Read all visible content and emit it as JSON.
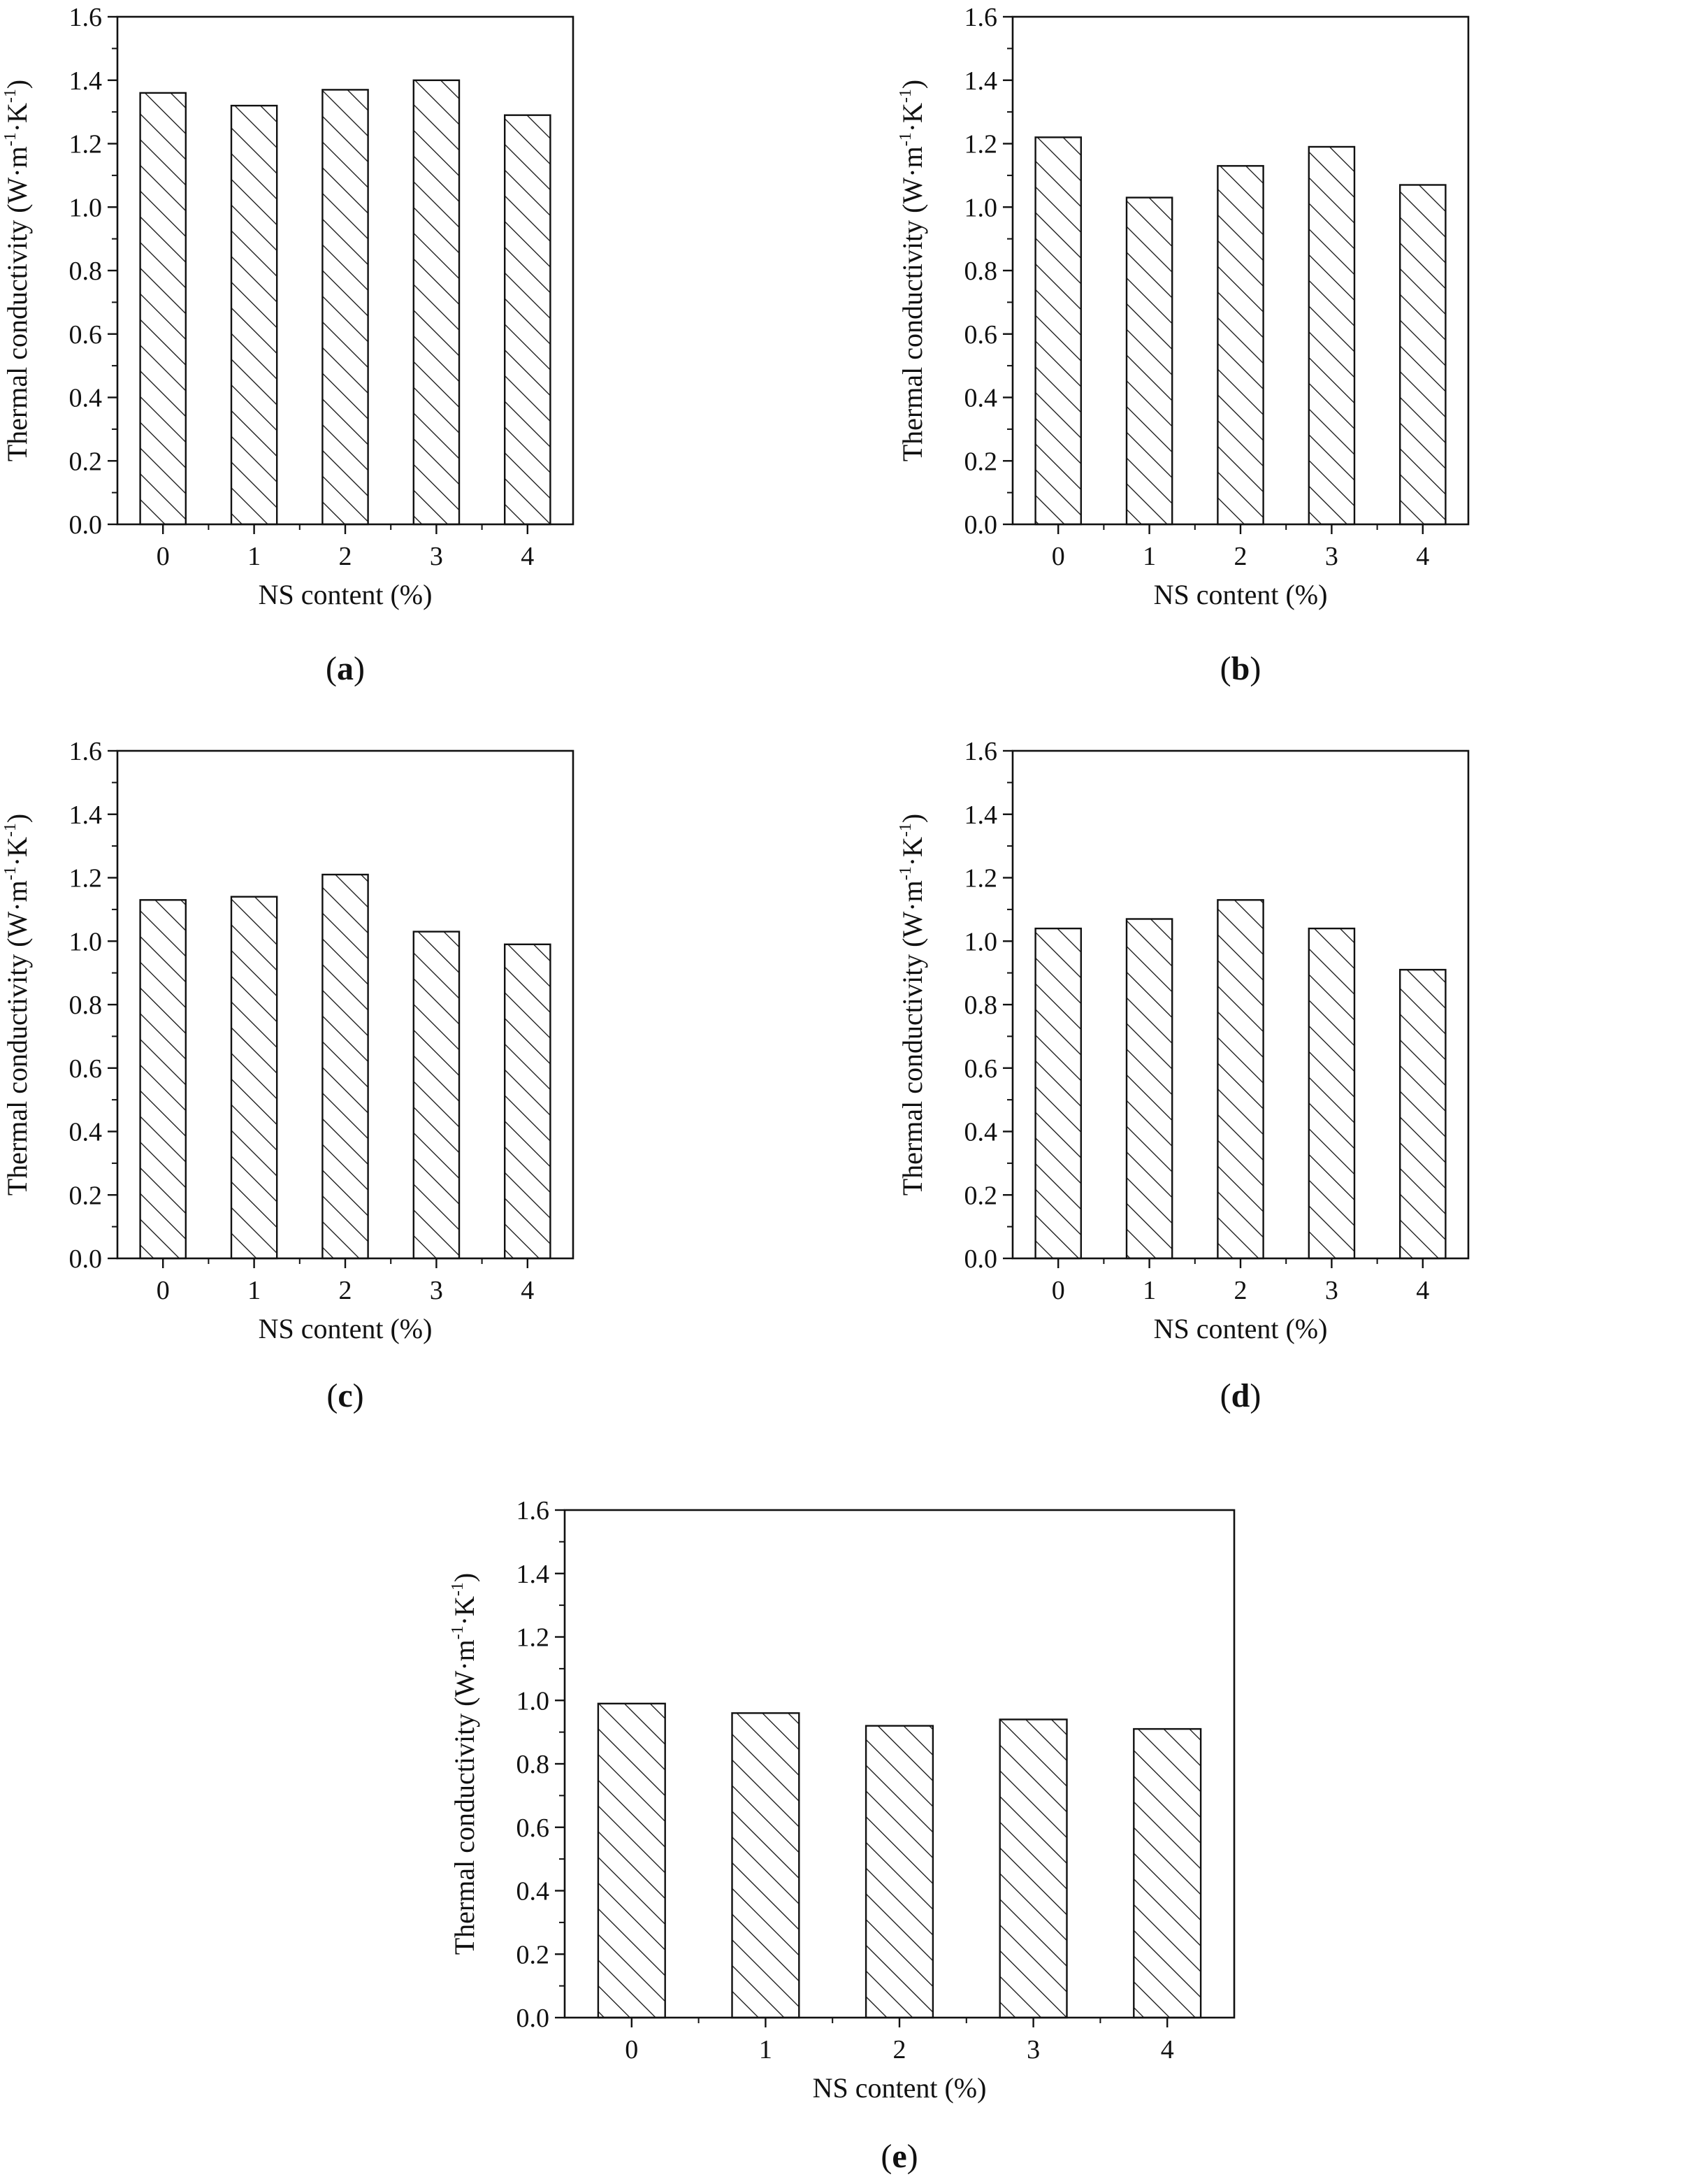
{
  "figure": {
    "ylabel": {
      "text": "Thermal conductivity (W·m",
      "sup1": "-1",
      "mid": "·K",
      "sup2": "-1",
      "end": ")"
    },
    "xlabel": "NS content (%)"
  },
  "chart_data": [
    {
      "panel": "a",
      "type": "bar",
      "categories": [
        "0",
        "1",
        "2",
        "3",
        "4"
      ],
      "values": [
        1.36,
        1.32,
        1.37,
        1.4,
        1.29
      ],
      "xlabel": "NS content (%)",
      "ylabel": "Thermal conductivity (W·m-1·K-1)",
      "ylim": [
        0,
        1.6
      ],
      "yticks": [
        "0.0",
        "0.2",
        "0.4",
        "0.6",
        "0.8",
        "1.0",
        "1.2",
        "1.4",
        "1.6"
      ],
      "fill": "hatch",
      "color": "#111111"
    },
    {
      "panel": "b",
      "type": "bar",
      "categories": [
        "0",
        "1",
        "2",
        "3",
        "4"
      ],
      "values": [
        1.22,
        1.03,
        1.13,
        1.19,
        1.07
      ],
      "xlabel": "NS content (%)",
      "ylabel": "Thermal conductivity (W·m-1·K-1)",
      "ylim": [
        0,
        1.6
      ],
      "yticks": [
        "0.0",
        "0.2",
        "0.4",
        "0.6",
        "0.8",
        "1.0",
        "1.2",
        "1.4",
        "1.6"
      ],
      "fill": "hatch",
      "color": "#111111"
    },
    {
      "panel": "c",
      "type": "bar",
      "categories": [
        "0",
        "1",
        "2",
        "3",
        "4"
      ],
      "values": [
        1.13,
        1.14,
        1.21,
        1.03,
        0.99
      ],
      "xlabel": "NS content (%)",
      "ylabel": "Thermal conductivity (W·m-1·K-1)",
      "ylim": [
        0,
        1.6
      ],
      "yticks": [
        "0.0",
        "0.2",
        "0.4",
        "0.6",
        "0.8",
        "1.0",
        "1.2",
        "1.4",
        "1.6"
      ],
      "fill": "hatch",
      "color": "#111111"
    },
    {
      "panel": "d",
      "type": "bar",
      "categories": [
        "0",
        "1",
        "2",
        "3",
        "4"
      ],
      "values": [
        1.04,
        1.07,
        1.13,
        1.04,
        0.91
      ],
      "xlabel": "NS content (%)",
      "ylabel": "Thermal conductivity (W·m-1·K-1)",
      "ylim": [
        0,
        1.6
      ],
      "yticks": [
        "0.0",
        "0.2",
        "0.4",
        "0.6",
        "0.8",
        "1.0",
        "1.2",
        "1.4",
        "1.6"
      ],
      "fill": "hatch",
      "color": "#111111"
    },
    {
      "panel": "e",
      "type": "bar",
      "categories": [
        "0",
        "1",
        "2",
        "3",
        "4"
      ],
      "values": [
        0.99,
        0.96,
        0.92,
        0.94,
        0.91
      ],
      "xlabel": "NS content (%)",
      "ylabel": "Thermal conductivity (W·m-1·K-1)",
      "ylim": [
        0,
        1.6
      ],
      "yticks": [
        "0.0",
        "0.2",
        "0.4",
        "0.6",
        "0.8",
        "1.0",
        "1.2",
        "1.4",
        "1.6"
      ],
      "fill": "hatch",
      "color": "#111111"
    }
  ]
}
